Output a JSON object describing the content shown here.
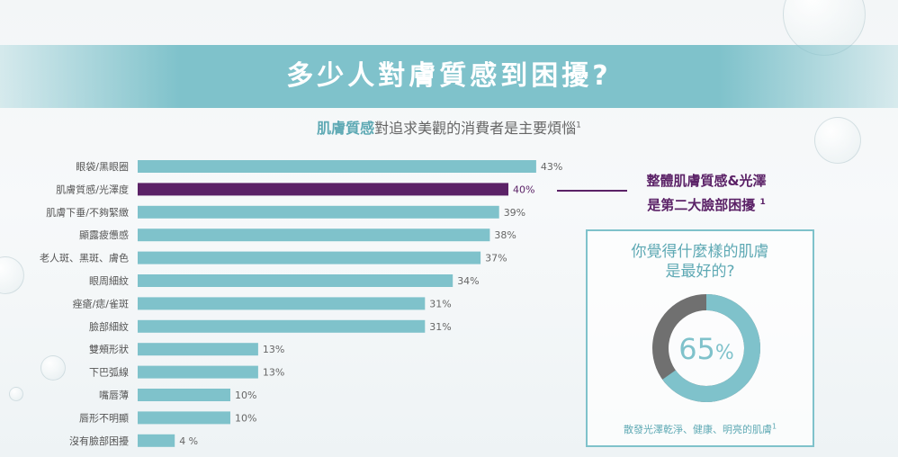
{
  "banner": {
    "title": "多少人對膚質感到困擾?"
  },
  "subtitle": {
    "highlight": "肌膚質感",
    "rest": "對追求美觀的消費者是主要煩惱",
    "note": "1"
  },
  "callout": {
    "line1": "整體肌膚質感&光澤",
    "line2": "是第二大臉部困擾",
    "note": "1"
  },
  "card": {
    "question_line1": "你覺得什麼樣的肌膚",
    "question_line2": "是最好的?",
    "value": "65",
    "unit": "%",
    "footer": "散發光澤乾淨、健康、明亮的肌膚",
    "footer_note": "1"
  },
  "colors": {
    "bar": "#7fc2cb",
    "highlight": "#5b2267",
    "donut_rest": "#707070"
  },
  "chart_data": [
    {
      "type": "bar",
      "orientation": "horizontal",
      "categories": [
        "眼袋/黑眼圈",
        "肌膚質感/光澤度",
        "肌膚下垂/不夠緊緻",
        "顯露疲憊感",
        "老人斑、黑斑、膚色",
        "眼周細紋",
        "痤瘡/痣/雀斑",
        "臉部細紋",
        "雙頰形狀",
        "下巴弧線",
        "嘴唇薄",
        "唇形不明顯",
        "沒有臉部困擾"
      ],
      "values": [
        43,
        40,
        39,
        38,
        37,
        34,
        31,
        31,
        13,
        13,
        10,
        10,
        4
      ],
      "value_labels": [
        "43%",
        "40%",
        "39%",
        "38%",
        "37%",
        "34%",
        "31%",
        "31%",
        "13%",
        "13%",
        "10%",
        "10%",
        "4 %"
      ],
      "highlight_index": 1,
      "xlim": [
        0,
        100
      ]
    },
    {
      "type": "pie",
      "labels": [
        "散發光澤乾淨、健康、明亮的肌膚",
        ""
      ],
      "values": [
        65,
        35
      ]
    }
  ]
}
